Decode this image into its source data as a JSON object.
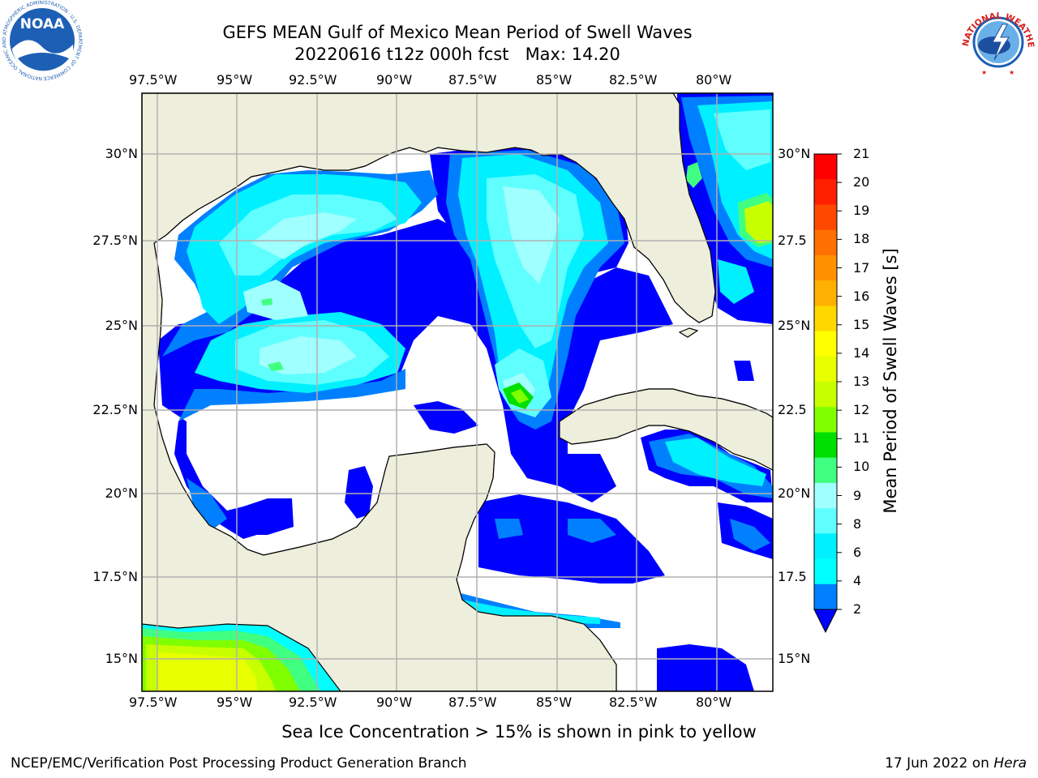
{
  "header": {
    "title": "GEFS MEAN Gulf of Mexico Mean Period of Swell Waves",
    "subtitle": "20220616 t12z 000h fcst   Max: 14.20"
  },
  "logos": {
    "noaa_text": "NOAA",
    "noaa_ring_text": "NATIONAL OCEANIC AND ATMOSPHERIC ADMINISTRATION · U.S. DEPARTMENT OF COMMERCE",
    "nws_ring_text": "NATIONAL WEATHER SERVICE"
  },
  "map": {
    "lon_labels": [
      "97.5°W",
      "95°W",
      "92.5°W",
      "90°W",
      "87.5°W",
      "85°W",
      "82.5°W",
      "80°W"
    ],
    "lat_labels_left": [
      "30°N",
      "27.5°N",
      "25°N",
      "22.5°N",
      "20°N",
      "17.5°N",
      "15°N"
    ],
    "lat_labels_right": [
      "30°N",
      "27.5",
      "25°N",
      "22.5",
      "20°N",
      "17.5",
      "15°N"
    ],
    "colors": {
      "land": "#eeeedc",
      "grid": "#b0b0b0",
      "ocean_empty": "#ffffff"
    }
  },
  "colorbar": {
    "label": "Mean Period of Swell Waves [s]",
    "ticks": [
      "21",
      "20",
      "19",
      "18",
      "17",
      "16",
      "15",
      "14",
      "13",
      "12",
      "11",
      "10",
      "9",
      "8",
      "6",
      "4",
      "2"
    ],
    "colors_top_to_bottom": [
      "#ff0000",
      "#ff2000",
      "#ff4800",
      "#ff7000",
      "#ff9000",
      "#ffb000",
      "#ffd800",
      "#ffff00",
      "#e8ff00",
      "#c8ff00",
      "#80ff00",
      "#00e000",
      "#40ff80",
      "#a0ffff",
      "#60ffff",
      "#00f0ff",
      "#00ffff",
      "#0080ff"
    ],
    "extend_color": "#0000ff"
  },
  "caption": "Sea Ice Concentration > 15% is shown in pink to yellow",
  "footer": {
    "left": "NCEP/EMC/Verification Post Processing Product Generation Branch",
    "right_prefix": "17 Jun 2022 on ",
    "right_italic": "Hera"
  }
}
